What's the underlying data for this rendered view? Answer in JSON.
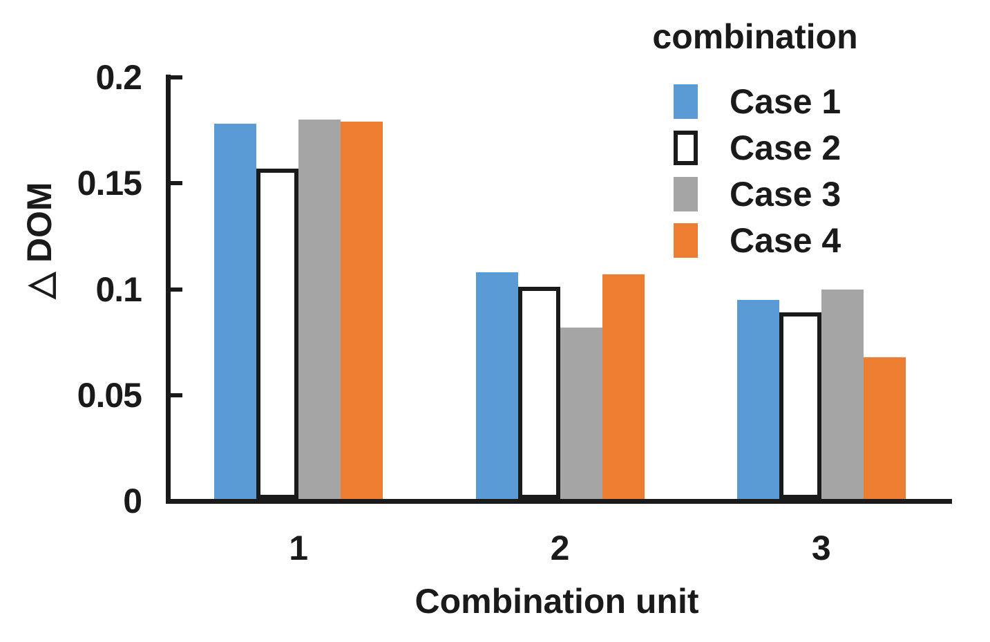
{
  "chart_data": {
    "type": "bar",
    "categories": [
      "1",
      "2",
      "3"
    ],
    "series": [
      {
        "name": "Case 1",
        "color": "#5B9BD5",
        "border": null,
        "values": [
          0.178,
          0.108,
          0.095
        ]
      },
      {
        "name": "Case 2",
        "color": "#FFFFFF",
        "border": "#1A1A1A",
        "values": [
          0.157,
          0.101,
          0.089
        ]
      },
      {
        "name": "Case 3",
        "color": "#A5A5A5",
        "border": null,
        "values": [
          0.18,
          0.082,
          0.1
        ]
      },
      {
        "name": "Case 4",
        "color": "#ED7D31",
        "border": null,
        "values": [
          0.179,
          0.107,
          0.068
        ]
      }
    ],
    "xlabel": "Combination unit",
    "ylabel": "△ DOM",
    "ylim": [
      0,
      0.2
    ],
    "yticks": [
      0,
      0.05,
      0.1,
      0.15,
      0.2
    ],
    "ytick_labels": [
      "0",
      "0.05",
      "0.1",
      "0.15",
      "0.2"
    ],
    "legend_title": "combination",
    "legend_position": "top-right",
    "grid": false,
    "axis_color": "#1A1A1A",
    "background_color": "#FFFFFF"
  }
}
